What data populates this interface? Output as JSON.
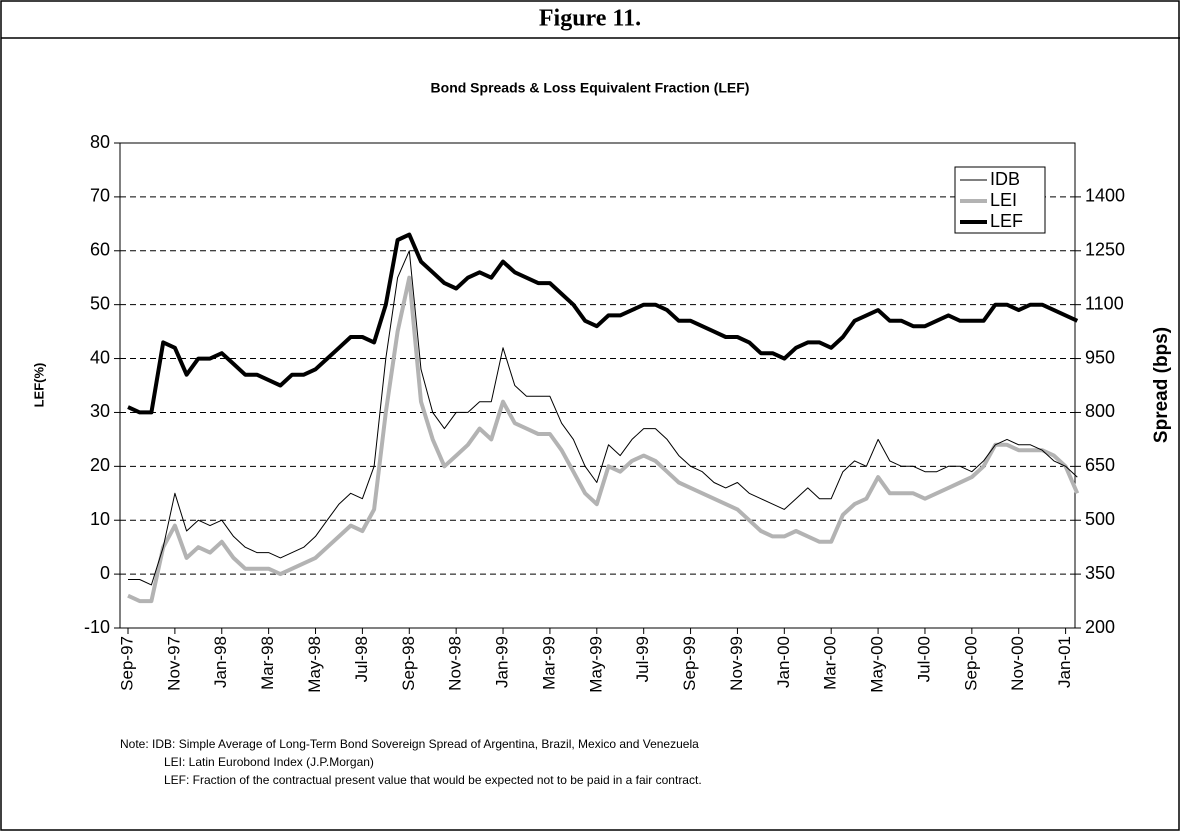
{
  "header": {
    "title": "Figure 11."
  },
  "chart_data": {
    "type": "line",
    "title": "Bond Spreads & Loss Equivalent Fraction (LEF)",
    "ylabel": "LEF(%)",
    "y2label": "Spread (bps)",
    "categories": [
      "Sep-97",
      null,
      null,
      null,
      "Nov-97",
      null,
      null,
      null,
      "Jan-98",
      null,
      null,
      null,
      "Mar-98",
      null,
      null,
      null,
      "May-98",
      null,
      null,
      null,
      "Jul-98",
      null,
      null,
      null,
      "Sep-98",
      null,
      null,
      null,
      "Nov-98",
      null,
      null,
      null,
      "Jan-99",
      null,
      null,
      null,
      "Mar-99",
      null,
      null,
      null,
      "May-99",
      null,
      null,
      null,
      "Jul-99",
      null,
      null,
      null,
      "Sep-99",
      null,
      null,
      null,
      "Nov-99",
      null,
      null,
      null,
      "Jan-00",
      null,
      null,
      null,
      "Mar-00",
      null,
      null,
      null,
      "May-00",
      null,
      null,
      null,
      "Jul-00",
      null,
      null,
      null,
      "Sep-00",
      null,
      null,
      null,
      "Nov-00",
      null,
      null,
      null,
      "Jan-01",
      null
    ],
    "series": [
      {
        "name": "IDB",
        "color": "#000000",
        "line_width": 1,
        "axis": "y2",
        "values": [
          335,
          335,
          320,
          425,
          575,
          470,
          500,
          485,
          500,
          455,
          425,
          410,
          410,
          395,
          410,
          425,
          455,
          500,
          545,
          575,
          560,
          650,
          950,
          1175,
          1250,
          920,
          800,
          755,
          800,
          800,
          830,
          830,
          980,
          875,
          845,
          845,
          845,
          770,
          725,
          650,
          605,
          710,
          680,
          725,
          755,
          755,
          725,
          680,
          650,
          635,
          605,
          590,
          605,
          575,
          560,
          545,
          530,
          560,
          590,
          560,
          560,
          635,
          665,
          650,
          725,
          665,
          650,
          650,
          635,
          635,
          650,
          650,
          635,
          665,
          710,
          725,
          710,
          710,
          695,
          665,
          650,
          620
        ]
      },
      {
        "name": "LEI",
        "color": "#b3b3b3",
        "line_width": 4,
        "axis": "y2",
        "values": [
          290,
          275,
          275,
          425,
          485,
          395,
          425,
          410,
          440,
          395,
          365,
          365,
          365,
          350,
          365,
          380,
          395,
          425,
          455,
          485,
          470,
          530,
          800,
          1025,
          1175,
          830,
          725,
          650,
          680,
          710,
          755,
          725,
          830,
          770,
          755,
          740,
          740,
          695,
          635,
          575,
          545,
          650,
          635,
          665,
          680,
          665,
          635,
          605,
          590,
          575,
          560,
          545,
          530,
          500,
          470,
          455,
          455,
          470,
          455,
          440,
          440,
          515,
          545,
          560,
          620,
          575,
          575,
          575,
          560,
          575,
          590,
          605,
          620,
          650,
          710,
          710,
          695,
          695,
          695,
          680,
          650,
          575
        ]
      },
      {
        "name": "LEF",
        "color": "#000000",
        "line_width": 4,
        "values": [
          31,
          30,
          30,
          43,
          42,
          37,
          40,
          40,
          41,
          39,
          37,
          37,
          36,
          35,
          37,
          37,
          38,
          40,
          42,
          44,
          44,
          43,
          50,
          62,
          63,
          58,
          56,
          54,
          53,
          55,
          56,
          55,
          58,
          56,
          55,
          54,
          54,
          52,
          50,
          47,
          46,
          48,
          48,
          49,
          50,
          50,
          49,
          47,
          47,
          46,
          45,
          44,
          44,
          43,
          41,
          41,
          40,
          42,
          43,
          43,
          42,
          44,
          47,
          48,
          49,
          47,
          47,
          46,
          46,
          47,
          48,
          47,
          47,
          47,
          50,
          50,
          49,
          50,
          50,
          49,
          48,
          47
        ]
      }
    ],
    "ylim": [
      -10,
      80
    ],
    "yticks": [
      -10,
      0,
      10,
      20,
      30,
      40,
      50,
      60,
      70,
      80
    ],
    "y2lim": [
      200,
      1550
    ],
    "y2ticks": [
      200,
      350,
      500,
      650,
      800,
      950,
      1100,
      1250,
      1400
    ],
    "grid": true,
    "legend": "upper right"
  },
  "notes": [
    "Note: IDB: Simple Average of Long-Term Bond Sovereign Spread of Argentina, Brazil, Mexico and Venezuela",
    "LEI: Latin Eurobond Index (J.P.Morgan)",
    "LEF: Fraction of the contractual present value that would be expected not to be paid in a fair contract."
  ]
}
